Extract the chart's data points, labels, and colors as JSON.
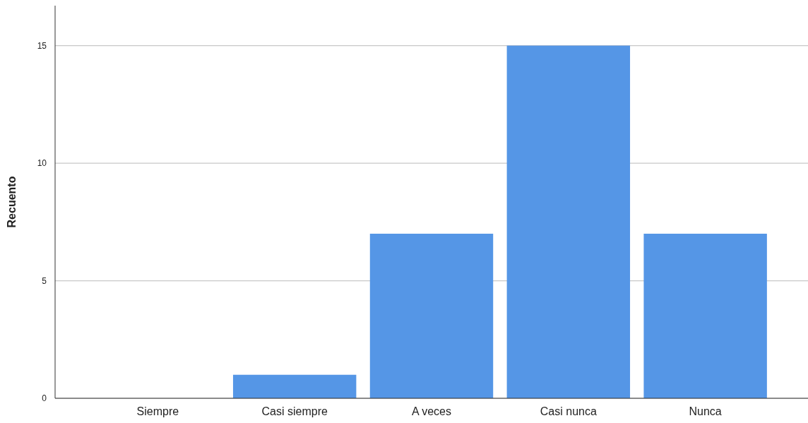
{
  "chart_data": {
    "type": "bar",
    "ylabel": "Recuento",
    "categories": [
      "Siempre",
      "Casi siempre",
      "A veces",
      "Casi nunca",
      "Nunca"
    ],
    "values": [
      0,
      1,
      7,
      15,
      7
    ],
    "color": "#5596e6",
    "ylim": [
      0,
      16.7
    ],
    "yticks": [
      0,
      5,
      10,
      15
    ],
    "grid": "y"
  }
}
